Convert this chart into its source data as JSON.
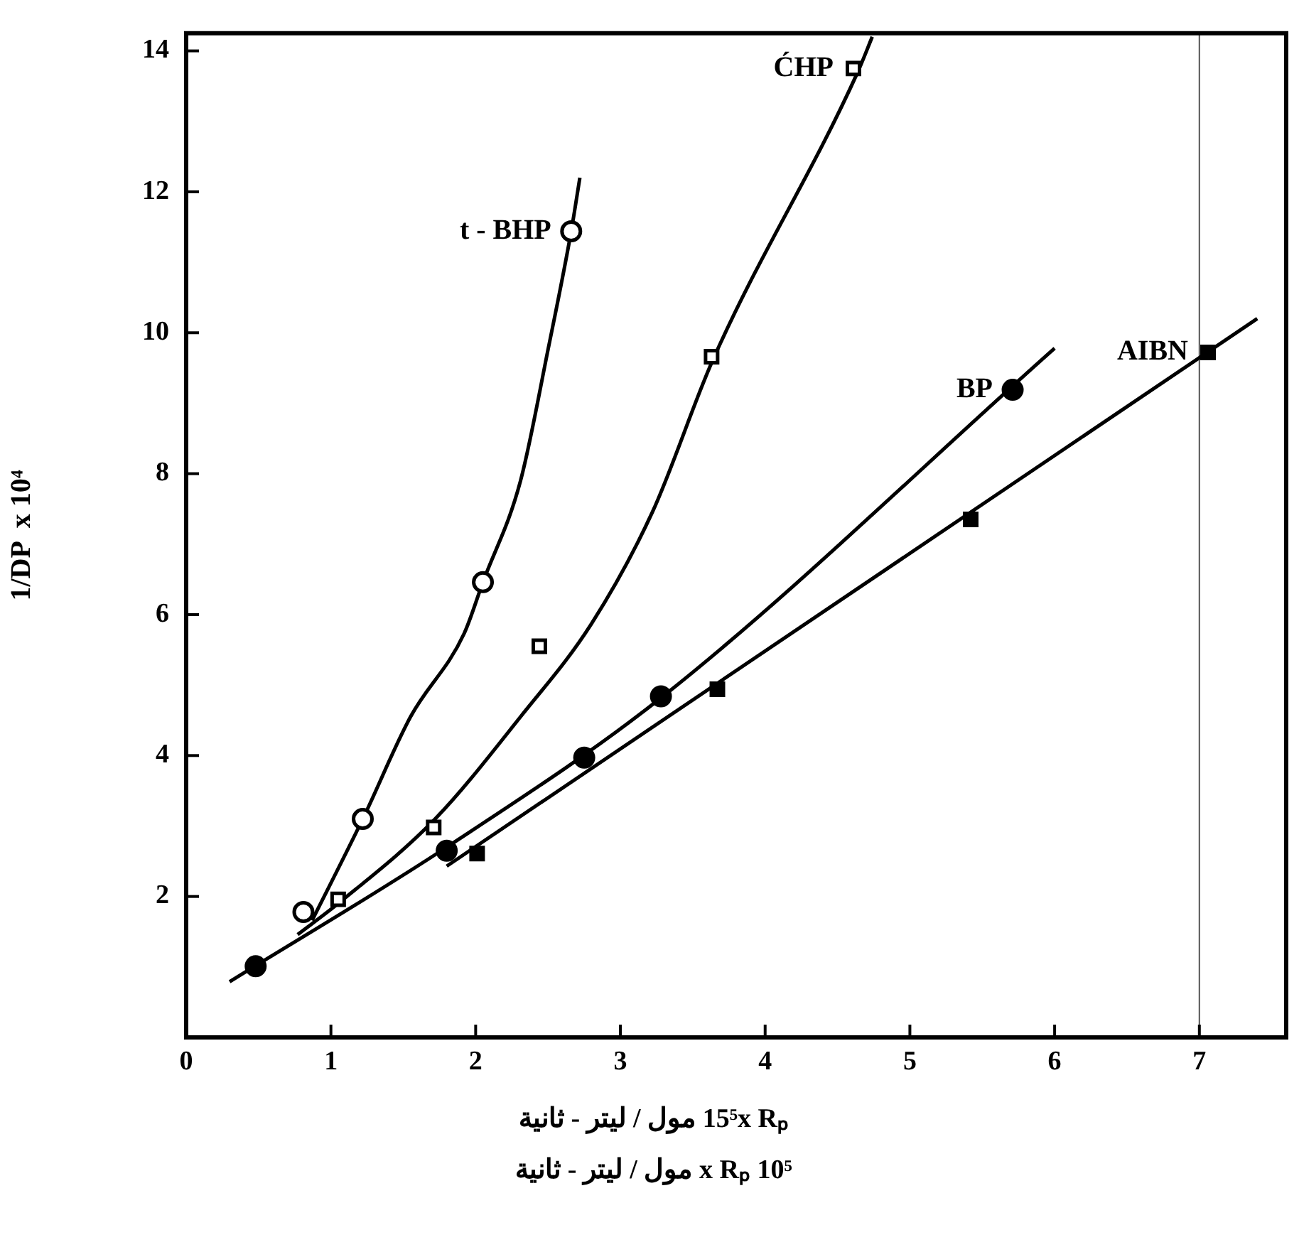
{
  "chart_data": {
    "type": "scatter",
    "ylabel": "1/DP  x 10⁴",
    "xlabel": "10⁵ x Rₚ مول / ليتر - ثانية",
    "xlim": [
      0,
      7.6
    ],
    "ylim": [
      0,
      14.25
    ],
    "xticks": [
      0,
      1,
      2,
      3,
      4,
      5,
      6,
      7
    ],
    "yticks": [
      {
        "value": 0,
        "label": null
      },
      2,
      4,
      6,
      8,
      10,
      12,
      14
    ],
    "grid": false,
    "legend": false,
    "series": [
      {
        "type": "scatter",
        "name": "t - BHP",
        "marker": "circle",
        "color": "#ffffff",
        "x": [
          0.81,
          1.22,
          2.05,
          2.66
        ],
        "values": [
          1.78,
          3.1,
          6.46,
          11.44
        ]
      },
      {
        "type": "scatter",
        "name": "ĆHP",
        "marker": "square",
        "color": "#ffffff",
        "x": [
          1.05,
          1.71,
          2.44,
          3.63,
          4.61
        ],
        "values": [
          1.96,
          2.98,
          5.55,
          9.66,
          13.75
        ]
      },
      {
        "type": "scatter",
        "name": "BP",
        "marker": "circle",
        "color": "#000000",
        "x": [
          0.48,
          1.8,
          2.75,
          3.28,
          5.71
        ],
        "values": [
          1.01,
          2.65,
          3.97,
          4.84,
          9.19
        ]
      },
      {
        "type": "scatter",
        "name": "AIBN",
        "marker": "square",
        "color": "#000000",
        "x": [
          2.01,
          3.67,
          5.42,
          7.06
        ],
        "values": [
          2.61,
          4.94,
          7.35,
          9.72
        ]
      },
      {
        "type": "line",
        "marker": "none",
        "color": "#000000",
        "x": [
          0.87,
          1.22,
          1.55,
          1.92,
          2.05,
          2.31,
          2.5,
          2.66,
          2.72
        ],
        "values": [
          1.66,
          3.1,
          4.55,
          5.73,
          6.46,
          7.9,
          9.76,
          11.44,
          12.2
        ]
      },
      {
        "type": "line",
        "marker": "none",
        "color": "#000000",
        "x": [
          0.77,
          1.05,
          1.72,
          2.31,
          2.8,
          3.22,
          3.64,
          4.64,
          4.74
        ],
        "values": [
          1.46,
          1.9,
          3.1,
          4.55,
          5.87,
          7.45,
          9.62,
          13.7,
          14.2
        ]
      },
      {
        "type": "line",
        "marker": "none",
        "color": "#000000",
        "x": [
          0.3,
          1.8,
          3.3,
          6.0
        ],
        "values": [
          0.79,
          2.7,
          4.85,
          9.78
        ]
      },
      {
        "type": "line",
        "marker": "none",
        "color": "#000000",
        "x": [
          1.8,
          7.4
        ],
        "values": [
          2.43,
          10.2
        ]
      }
    ],
    "ref_lines": [
      {
        "axis": "x",
        "value": 7,
        "color": "#555555"
      }
    ],
    "annotations": [
      "15⁵x Rₚ    مول / ليتر - ثانية"
    ]
  }
}
